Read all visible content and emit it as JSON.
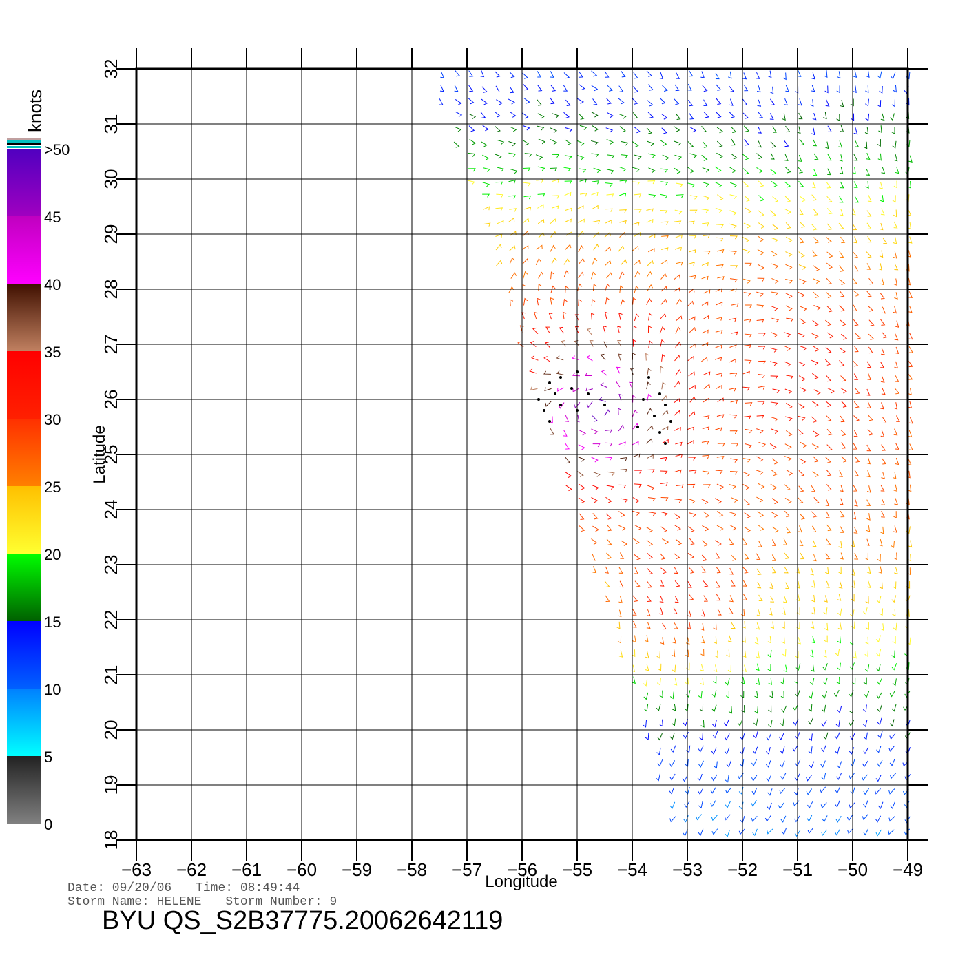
{
  "map": {
    "lon_ticks": [
      -63,
      -62,
      -61,
      -60,
      -59,
      -58,
      -57,
      -56,
      -55,
      -54,
      -53,
      -52,
      -51,
      -50,
      -49
    ],
    "lat_ticks": [
      18,
      19,
      20,
      21,
      22,
      23,
      24,
      25,
      26,
      27,
      28,
      29,
      30,
      31,
      32
    ],
    "lon_range": [
      -63,
      -49
    ],
    "lat_range": [
      18,
      32
    ],
    "xlabel": "Longitude",
    "ylabel": "Latitude",
    "grid": true
  },
  "colorbar": {
    "unit_label": "knots",
    "tick_labels": [
      {
        "label": ">50",
        "value": 50
      },
      {
        "label": "45",
        "value": 45
      },
      {
        "label": "40",
        "value": 40
      },
      {
        "label": "35",
        "value": 35
      },
      {
        "label": "30",
        "value": 30
      },
      {
        "label": "25",
        "value": 25
      },
      {
        "label": "20",
        "value": 20
      },
      {
        "label": "15",
        "value": 15
      },
      {
        "label": "10",
        "value": 10
      },
      {
        "label": "5",
        "value": 5
      },
      {
        "label": "0",
        "value": 0
      }
    ],
    "bands": [
      {
        "from": 0,
        "to": 5,
        "colors": [
          "#808080",
          "#222222"
        ]
      },
      {
        "from": 5,
        "to": 10,
        "colors": [
          "#00ffff",
          "#0080ff"
        ]
      },
      {
        "from": 10,
        "to": 15,
        "colors": [
          "#0060ff",
          "#0000ff"
        ]
      },
      {
        "from": 15,
        "to": 20,
        "colors": [
          "#006000",
          "#00ff00"
        ]
      },
      {
        "from": 20,
        "to": 25,
        "colors": [
          "#ffff30",
          "#ffc000"
        ]
      },
      {
        "from": 25,
        "to": 30,
        "colors": [
          "#ff8000",
          "#ff3000"
        ]
      },
      {
        "from": 30,
        "to": 35,
        "colors": [
          "#ff2000",
          "#ff0000"
        ]
      },
      {
        "from": 35,
        "to": 40,
        "colors": [
          "#c08060",
          "#401000"
        ]
      },
      {
        "from": 40,
        "to": 45,
        "colors": [
          "#ff00ff",
          "#c000c0"
        ]
      },
      {
        "from": 45,
        "to": 50,
        "colors": [
          "#a000c0",
          "#5000c0"
        ]
      }
    ],
    "top_stripes": [
      "#c0a0a0",
      "#00c0c0",
      "#000000",
      "#00c0c0"
    ]
  },
  "swath": {
    "corners_lonlat": [
      [
        -57.7,
        32.05
      ],
      [
        -48.9,
        32.05
      ],
      [
        -48.9,
        17.95
      ],
      [
        -53.1,
        17.95
      ]
    ],
    "wind_field": {
      "centers": [
        {
          "lon": -54.6,
          "lat": 25.8,
          "speed": 48
        },
        {
          "lon": -53.2,
          "lat": 22.6,
          "speed": 31
        },
        {
          "lon": -51.0,
          "lat": 26.5,
          "speed": 32
        }
      ],
      "background": [
        {
          "lat": 32.0,
          "speed": 12
        },
        {
          "lat": 30.5,
          "speed": 17
        },
        {
          "lat": 29.0,
          "speed": 24
        },
        {
          "lat": 27.5,
          "speed": 28
        },
        {
          "lat": 24.0,
          "speed": 27
        },
        {
          "lat": 22.0,
          "speed": 22
        },
        {
          "lat": 21.0,
          "speed": 18
        },
        {
          "lat": 19.5,
          "speed": 12
        },
        {
          "lat": 18.0,
          "speed": 10
        }
      ]
    },
    "rain_flag_cells": [
      [
        -55.5,
        26.3
      ],
      [
        -55.3,
        26.4
      ],
      [
        -55.0,
        26.5
      ],
      [
        -55.7,
        26.0
      ],
      [
        -55.4,
        26.1
      ],
      [
        -55.1,
        26.2
      ],
      [
        -54.8,
        26.1
      ],
      [
        -55.6,
        25.8
      ],
      [
        -55.3,
        25.9
      ],
      [
        -55.0,
        25.8
      ],
      [
        -54.5,
        25.9
      ],
      [
        -53.7,
        26.4
      ],
      [
        -53.5,
        26.1
      ],
      [
        -53.8,
        26.0
      ],
      [
        -53.4,
        25.9
      ],
      [
        -53.6,
        25.7
      ],
      [
        -53.3,
        25.6
      ],
      [
        -53.9,
        25.5
      ],
      [
        -53.5,
        25.4
      ],
      [
        -53.4,
        25.2
      ],
      [
        -55.5,
        25.6
      ]
    ]
  },
  "footer": {
    "date_label": "Date: 09/20/06",
    "time_label": "Time: 08:49:44",
    "storm_name_label": "Storm  Name:  HELENE",
    "storm_number_label": "Storm  Number:  9",
    "file_title": "BYU  QS_S2B37775.20062642119"
  }
}
